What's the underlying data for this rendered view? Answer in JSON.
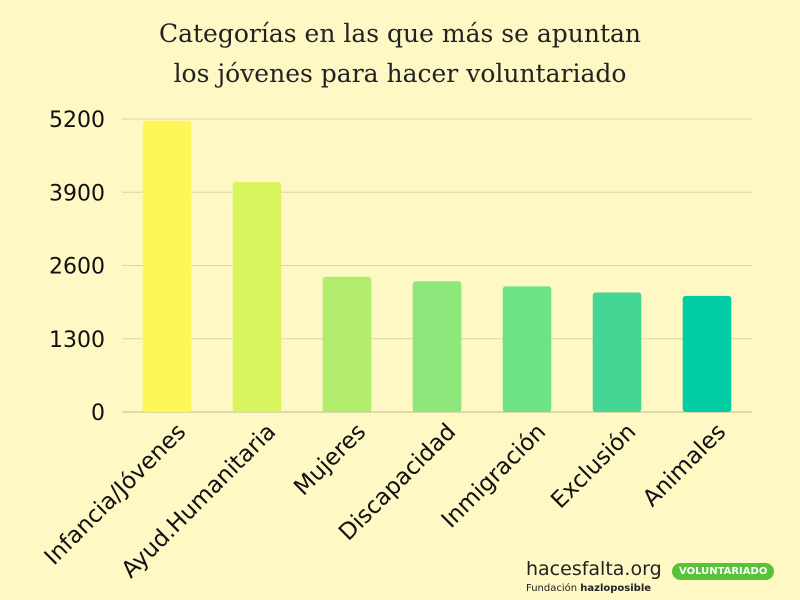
{
  "chart_data": {
    "type": "bar",
    "title_lines": [
      "Categorías en las que más se apuntan",
      "los jóvenes para hacer voluntariado"
    ],
    "categories": [
      "Infancia/Jóvenes",
      "Ayud.Humanitaria",
      "Mujeres",
      "Discapacidad",
      "Inmigración",
      "Exclusión",
      "Animales"
    ],
    "values": [
      5170,
      4080,
      2400,
      2320,
      2230,
      2120,
      2060
    ],
    "yticks": [
      0,
      1300,
      2600,
      3900,
      5200
    ],
    "ylim": [
      0,
      5200
    ],
    "grid": true,
    "bar_colors": [
      "#fdf75a",
      "#d8f45e",
      "#b1ec6c",
      "#8de77a",
      "#6de286",
      "#45d696",
      "#00cda4"
    ],
    "grid_color": "#d9d7a4"
  },
  "footer": {
    "brand": "hacesfalta.org",
    "foundation_prefix": "Fundación",
    "foundation_name": "hazloposible",
    "badge": "VOLUNTARIADO"
  },
  "colors": {
    "background": "#fdf8c4",
    "badge": "#58c23a"
  }
}
